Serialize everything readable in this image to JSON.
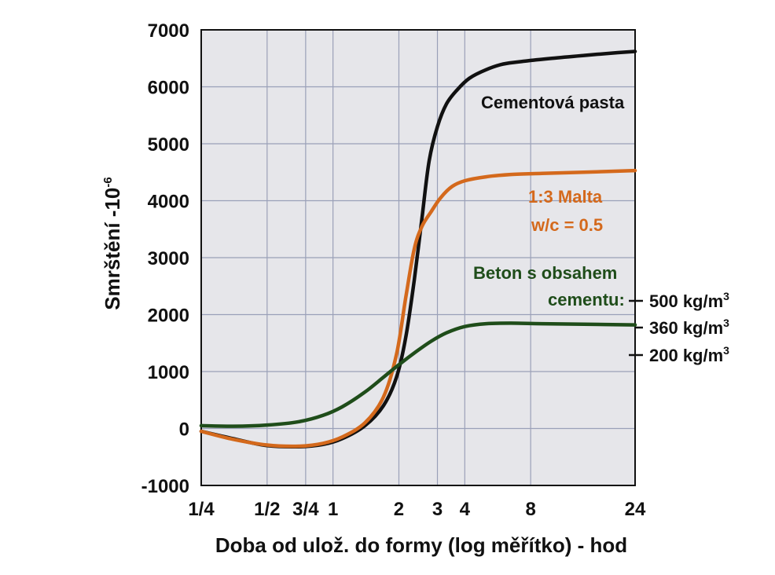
{
  "chart_data": {
    "type": "line",
    "xlabel": "Doba od ulož. do formy (log měřítko) - hod",
    "ylabel": "Smrštění -10",
    "ylabel_exponent": "-6",
    "x_scale": "log",
    "xlim": [
      0.25,
      24
    ],
    "ylim": [
      -1000,
      7000
    ],
    "grid": true,
    "x_ticks": [
      {
        "value": 0.25,
        "label": "1/4"
      },
      {
        "value": 0.5,
        "label": "1/2"
      },
      {
        "value": 0.75,
        "label": "3/4"
      },
      {
        "value": 1,
        "label": "1"
      },
      {
        "value": 2,
        "label": "2"
      },
      {
        "value": 3,
        "label": "3"
      },
      {
        "value": 4,
        "label": "4"
      },
      {
        "value": 8,
        "label": "8"
      },
      {
        "value": 24,
        "label": "24"
      }
    ],
    "y_ticks": [
      {
        "value": -1000,
        "label": "-1000"
      },
      {
        "value": 0,
        "label": "0"
      },
      {
        "value": 1000,
        "label": "1000"
      },
      {
        "value": 2000,
        "label": "2000"
      },
      {
        "value": 3000,
        "label": "3000"
      },
      {
        "value": 4000,
        "label": "4000"
      },
      {
        "value": 5000,
        "label": "5000"
      },
      {
        "value": 6000,
        "label": "6000"
      },
      {
        "value": 7000,
        "label": "7000"
      }
    ],
    "series": [
      {
        "id": "cement-paste",
        "color": "#111111",
        "x": [
          0.25,
          0.35,
          0.5,
          0.7,
          0.9,
          1.1,
          1.4,
          1.7,
          1.95,
          2.15,
          2.35,
          2.55,
          2.75,
          3.0,
          3.3,
          3.7,
          4.2,
          5.0,
          6.0,
          7.5,
          10,
          14,
          20,
          24
        ],
        "y": [
          -50,
          -180,
          -300,
          -320,
          -280,
          -180,
          50,
          400,
          900,
          1600,
          2600,
          3700,
          4700,
          5300,
          5700,
          5950,
          6150,
          6300,
          6400,
          6450,
          6500,
          6550,
          6600,
          6620
        ]
      },
      {
        "id": "mortar",
        "color": "#d4691c",
        "x": [
          0.25,
          0.35,
          0.5,
          0.7,
          0.9,
          1.1,
          1.4,
          1.7,
          1.95,
          2.15,
          2.35,
          2.55,
          2.8,
          3.1,
          3.5,
          4.0,
          5.0,
          6.5,
          9,
          14,
          24
        ],
        "y": [
          -50,
          -190,
          -290,
          -310,
          -260,
          -150,
          100,
          550,
          1300,
          2300,
          3150,
          3550,
          3800,
          4050,
          4250,
          4350,
          4420,
          4460,
          4480,
          4500,
          4530
        ]
      },
      {
        "id": "concrete",
        "color": "#1f4d1a",
        "x": [
          0.25,
          0.35,
          0.5,
          0.7,
          0.9,
          1.1,
          1.4,
          1.7,
          2.0,
          2.4,
          2.8,
          3.3,
          4.0,
          5.0,
          6.5,
          9,
          14,
          24
        ],
        "y": [
          50,
          40,
          60,
          120,
          230,
          380,
          640,
          900,
          1120,
          1350,
          1530,
          1680,
          1790,
          1840,
          1850,
          1840,
          1830,
          1820
        ]
      }
    ],
    "annotations": {
      "cement_paste": "Cementová pasta",
      "mortar_line1": "1:3  Malta",
      "mortar_line2": "w/c = 0.5",
      "concrete_line1": "Beton s obsahem",
      "concrete_line2": "cementu:",
      "content_500": "500 kg/m",
      "content_360": "360 kg/m",
      "content_200": "200 kg/m",
      "cube_exponent": "3"
    }
  }
}
